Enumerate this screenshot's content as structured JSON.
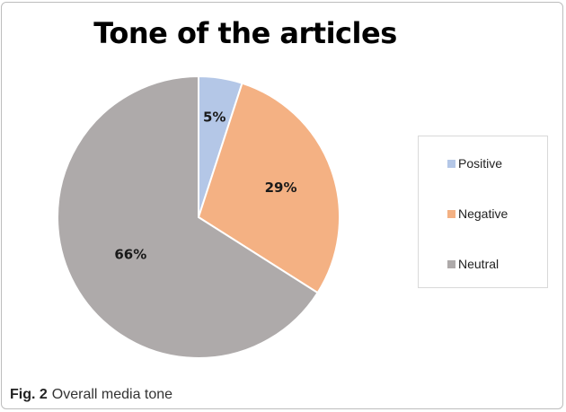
{
  "chart_data": {
    "type": "pie",
    "title": "Tone of the articles",
    "categories": [
      "Positive",
      "Negative",
      "Neutral"
    ],
    "values": [
      5,
      29,
      66
    ],
    "labels": [
      "5%",
      "29%",
      "66%"
    ],
    "colors": [
      "#b4c7e7",
      "#f4b183",
      "#aeaaaa"
    ],
    "start_angle_deg": 0,
    "direction": "clockwise",
    "legend_position": "right"
  },
  "legend": {
    "items": [
      {
        "label": "Positive",
        "color": "#b4c7e7"
      },
      {
        "label": "Negative",
        "color": "#f4b183"
      },
      {
        "label": "Neutral",
        "color": "#aeaaaa"
      }
    ]
  },
  "caption": {
    "label": "Fig. 2",
    "text": "Overall media tone"
  }
}
